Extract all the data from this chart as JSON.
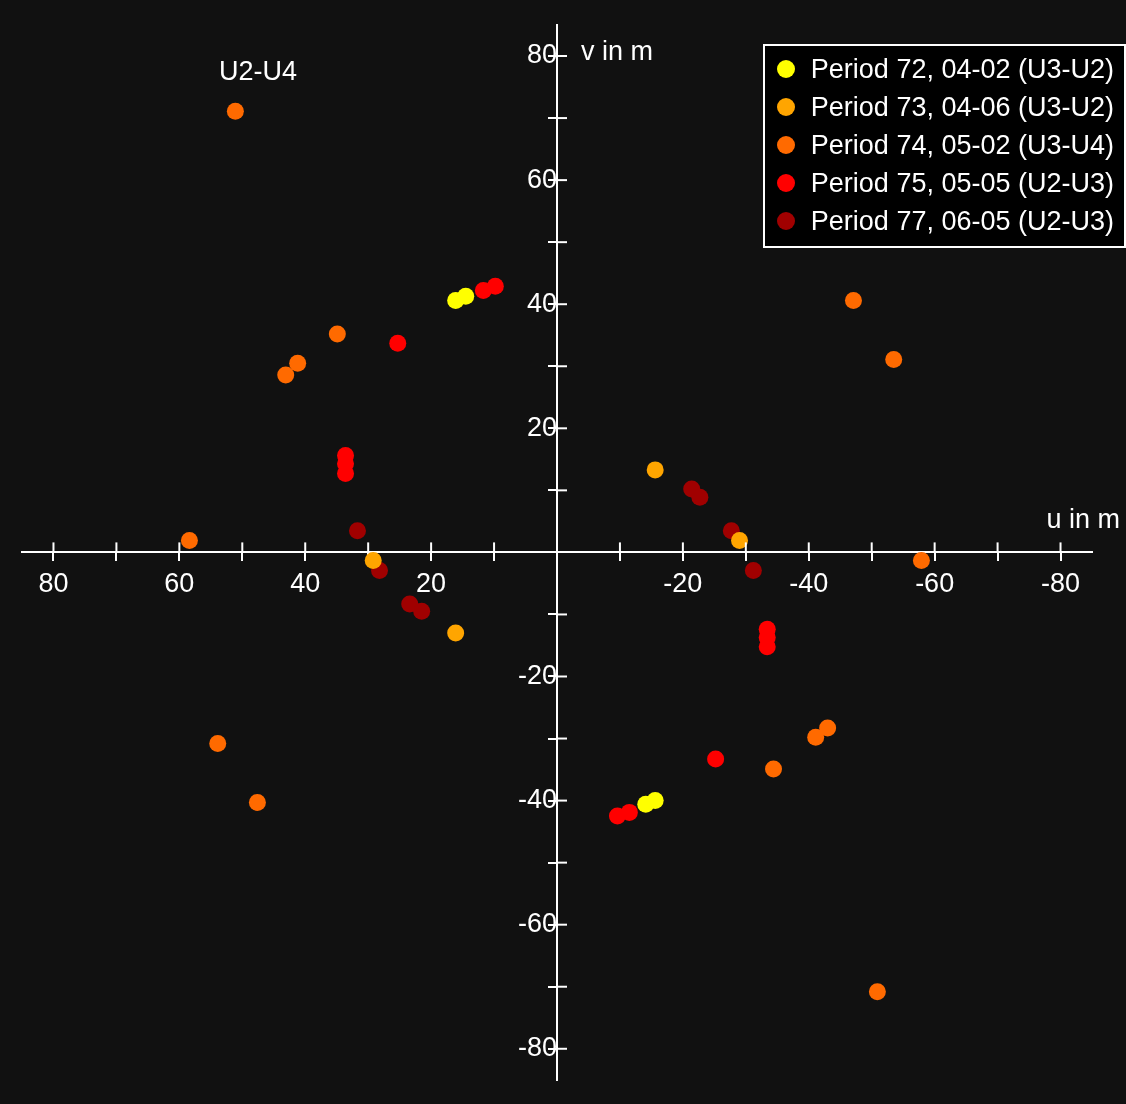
{
  "chart_data": {
    "type": "scatter",
    "xlabel": "u in m",
    "ylabel": "v in m",
    "annotations": [
      "U2-U4"
    ],
    "xlim": [
      85,
      -85
    ],
    "ylim": [
      -85,
      85
    ],
    "xticks": [
      {
        "value": 80,
        "label": "80"
      },
      {
        "value": 70,
        "label": null
      },
      {
        "value": 60,
        "label": "60"
      },
      {
        "value": 50,
        "label": null
      },
      {
        "value": 40,
        "label": "40"
      },
      {
        "value": 30,
        "label": null
      },
      {
        "value": 20,
        "label": "20"
      },
      {
        "value": 10,
        "label": null
      },
      {
        "value": -10,
        "label": null
      },
      {
        "value": -20,
        "label": "-20"
      },
      {
        "value": -30,
        "label": null
      },
      {
        "value": -40,
        "label": "-40"
      },
      {
        "value": -50,
        "label": null
      },
      {
        "value": -60,
        "label": "-60"
      },
      {
        "value": -70,
        "label": null
      },
      {
        "value": -80,
        "label": "-80"
      }
    ],
    "yticks": [
      {
        "value": 80,
        "label": "80"
      },
      {
        "value": 70,
        "label": null
      },
      {
        "value": 60,
        "label": "60"
      },
      {
        "value": 50,
        "label": null
      },
      {
        "value": 40,
        "label": "40"
      },
      {
        "value": 30,
        "label": null
      },
      {
        "value": 20,
        "label": "20"
      },
      {
        "value": 10,
        "label": null
      },
      {
        "value": -10,
        "label": null
      },
      {
        "value": -20,
        "label": "-20"
      },
      {
        "value": -30,
        "label": null
      },
      {
        "value": -40,
        "label": "-40"
      },
      {
        "value": -50,
        "label": null
      },
      {
        "value": -60,
        "label": "-60"
      },
      {
        "value": -70,
        "label": null
      },
      {
        "value": -80,
        "label": "-80"
      }
    ],
    "grid": false,
    "legend": "top right",
    "marker": "circle",
    "series": [
      {
        "name": "Period 72, 04-02 (U3-U2)",
        "color": "#ffff00",
        "x": [
          16.1,
          14.5,
          -14.1,
          -15.6
        ],
        "values": [
          40.6,
          41.3,
          -40.6,
          -40.0
        ]
      },
      {
        "name": "Period 73, 04-06 (U3-U2)",
        "color": "#ffa500",
        "x": [
          -15.6,
          -29.0,
          29.2,
          16.1
        ],
        "values": [
          13.3,
          1.9,
          -1.3,
          -13.0
        ]
      },
      {
        "name": "Period 74, 05-02 (U3-U4)",
        "color": "#ff6a00",
        "x": [
          51.1,
          58.4,
          43.1,
          41.2,
          34.9,
          -47.1,
          -53.5,
          -57.9,
          53.9,
          47.6,
          -41.1,
          -43.0,
          -34.4,
          -50.9
        ],
        "values": [
          71.1,
          1.9,
          28.6,
          30.5,
          35.2,
          40.6,
          31.1,
          -1.3,
          -30.8,
          -40.3,
          -29.8,
          -28.3,
          -34.9,
          -70.8
        ]
      },
      {
        "name": "Period 75, 05-05 (U2-U3)",
        "color": "#ff0000",
        "x": [
          11.7,
          9.8,
          25.3,
          33.6,
          33.6,
          33.6,
          -25.2,
          -9.6,
          -11.5,
          -33.4,
          -33.4,
          -33.4
        ],
        "values": [
          42.2,
          42.9,
          33.7,
          15.6,
          14.3,
          12.7,
          -33.3,
          -42.5,
          -41.9,
          -12.4,
          -13.7,
          -15.2
        ]
      },
      {
        "name": "Period 77, 06-05 (U2-U3)",
        "color": "#a00000",
        "x": [
          31.7,
          28.2,
          23.4,
          21.5,
          -21.4,
          -22.7,
          -27.7,
          -31.2
        ],
        "values": [
          3.5,
          -2.9,
          -8.3,
          -9.5,
          10.2,
          8.9,
          3.5,
          -2.9
        ]
      }
    ]
  }
}
